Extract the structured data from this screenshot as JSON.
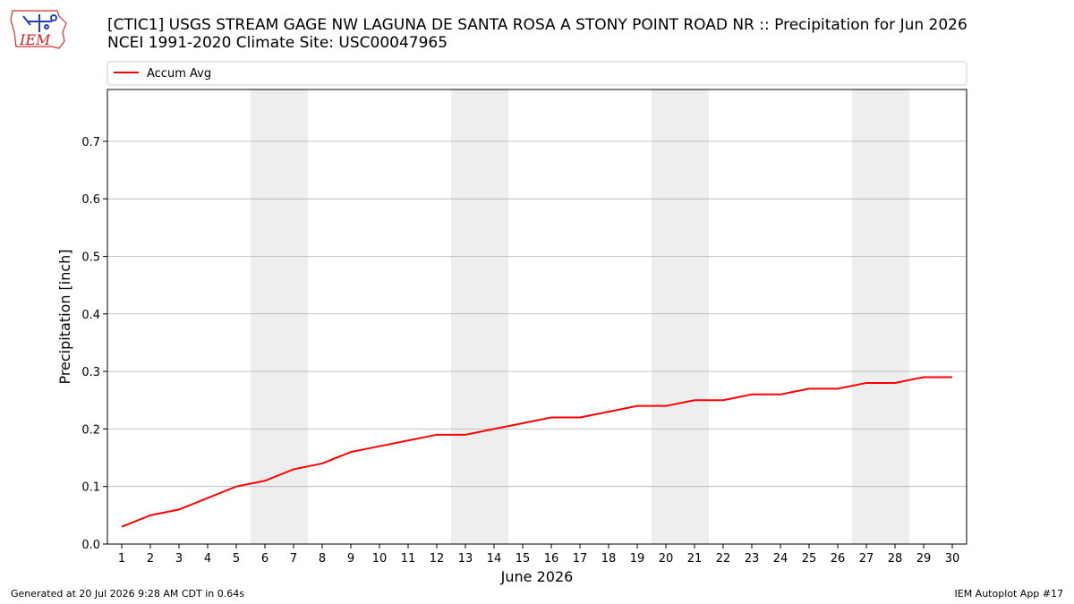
{
  "logo": {
    "text": "IEM"
  },
  "title": {
    "line1": "[CTIC1] USGS STREAM GAGE  NW LAGUNA DE SANTA ROSA A STONY POINT ROAD NR :: Precipitation for Jun 2026",
    "line2": "NCEI 1991-2020 Climate Site: USC00047965"
  },
  "footer": {
    "left": "Generated at 20 Jul 2026 9:28 AM CDT in 0.64s",
    "right": "IEM Autoplot App #17"
  },
  "chart_data": {
    "type": "line",
    "xlabel": "June 2026",
    "ylabel": "Precipitation [inch]",
    "xlim": [
      0.5,
      30.5
    ],
    "ylim": [
      0.0,
      0.79
    ],
    "grid": "horizontal",
    "legend_position": "top",
    "x": [
      1,
      2,
      3,
      4,
      5,
      6,
      7,
      8,
      9,
      10,
      11,
      12,
      13,
      14,
      15,
      16,
      17,
      18,
      19,
      20,
      21,
      22,
      23,
      24,
      25,
      26,
      27,
      28,
      29,
      30
    ],
    "yticks": [
      0.0,
      0.1,
      0.2,
      0.3,
      0.4,
      0.5,
      0.6,
      0.7
    ],
    "ytick_labels": [
      "0.0",
      "0.1",
      "0.2",
      "0.3",
      "0.4",
      "0.5",
      "0.6",
      "0.7"
    ],
    "weekend_bands": [
      [
        6,
        7
      ],
      [
        13,
        14
      ],
      [
        20,
        21
      ],
      [
        27,
        28
      ]
    ],
    "colors": {
      "line": "#ff0000",
      "band": "#eeeeee",
      "grid": "#b0b0b0"
    },
    "series": [
      {
        "name": "Accum Avg",
        "color": "#ff0000",
        "values": [
          0.03,
          0.05,
          0.06,
          0.08,
          0.1,
          0.11,
          0.13,
          0.14,
          0.16,
          0.17,
          0.18,
          0.19,
          0.19,
          0.2,
          0.21,
          0.22,
          0.22,
          0.23,
          0.24,
          0.24,
          0.25,
          0.25,
          0.26,
          0.26,
          0.27,
          0.27,
          0.28,
          0.28,
          0.29,
          0.29
        ]
      }
    ]
  }
}
